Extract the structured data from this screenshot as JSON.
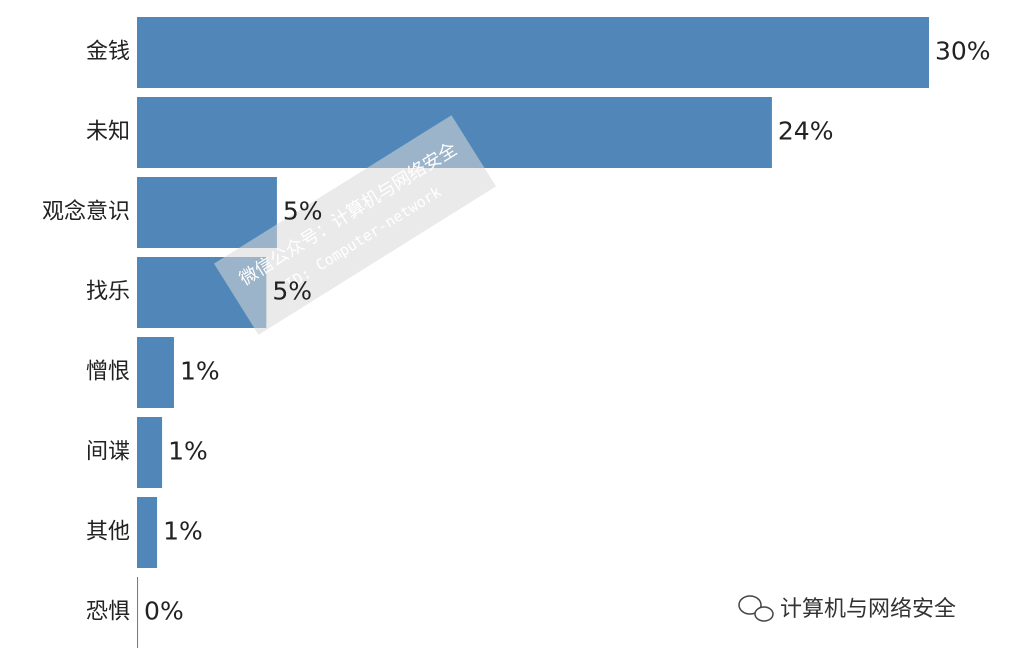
{
  "chart_data": {
    "type": "hbar",
    "categories": [
      "金钱",
      "未知",
      "观念意识",
      "找乐",
      "憎恨",
      "间谍",
      "其他",
      "恐惧"
    ],
    "values": [
      30,
      24.05,
      5.3,
      4.9,
      1.4,
      0.95,
      0.76,
      0.04
    ],
    "value_labels": [
      "30%",
      "24%",
      "5%",
      "5%",
      "1%",
      "1%",
      "1%",
      "0%"
    ],
    "color": "#5187b8",
    "annotations": [
      "微信公众号：计算机与网络安全",
      "ID: Computer-network",
      "计算机与网络安全"
    ]
  }
}
